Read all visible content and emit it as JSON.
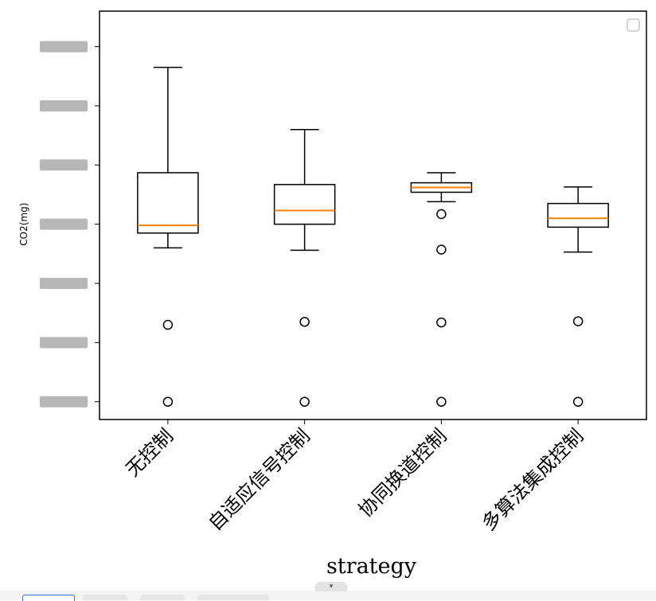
{
  "chart_data": {
    "type": "box",
    "xlabel": "strategy",
    "ylabel": "CO2(mg)",
    "categories": [
      "无控制",
      "自适应信号控制",
      "协同换道控制",
      "多算法集成控制"
    ],
    "boxes": [
      {
        "whisker_low": 2.6,
        "q1": 2.85,
        "median": 2.98,
        "q3": 3.87,
        "whisker_high": 5.65,
        "outliers": [
          0.0,
          1.3
        ]
      },
      {
        "whisker_low": 2.56,
        "q1": 3.0,
        "median": 3.23,
        "q3": 3.67,
        "whisker_high": 4.6,
        "outliers": [
          0.0,
          1.35
        ]
      },
      {
        "whisker_low": 3.38,
        "q1": 3.54,
        "median": 3.62,
        "q3": 3.7,
        "whisker_high": 3.87,
        "outliers": [
          0.0,
          1.34,
          2.57,
          3.17
        ]
      },
      {
        "whisker_low": 2.53,
        "q1": 2.95,
        "median": 3.1,
        "q3": 3.35,
        "whisker_high": 3.63,
        "outliers": [
          0.0,
          1.36
        ]
      }
    ],
    "ylim": [
      -0.3,
      6.6
    ],
    "yticks_blurred": [
      0,
      1,
      2,
      3,
      4,
      5,
      6
    ],
    "legend": "top-right",
    "median_color": "#ff7f0e",
    "box_color": "#000000"
  },
  "bottom_bar": {
    "scroll_icon": "chevron-down-icon",
    "scroll_glyph": "▾"
  }
}
